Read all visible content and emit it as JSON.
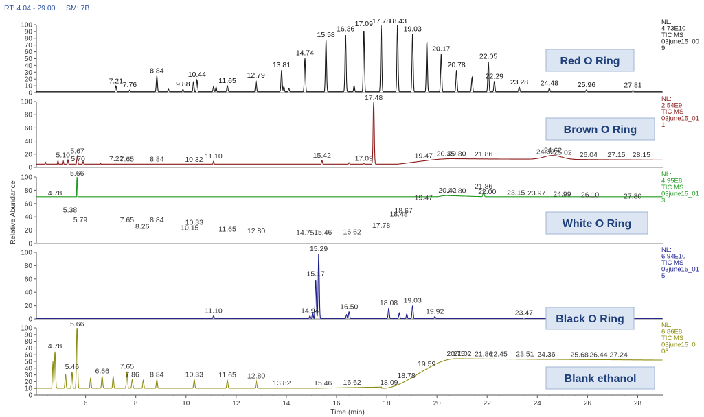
{
  "header": {
    "rt_label": "RT: 4.04 - 29.00",
    "sm_label": "SM: 7B"
  },
  "chart_data": {
    "type": "line",
    "xlabel": "Time (min)",
    "ylabel": "Relative Abundance",
    "xlim": [
      4.04,
      29.0
    ],
    "ylim": [
      0,
      100
    ],
    "x_ticks": [
      6,
      8,
      10,
      12,
      14,
      16,
      18,
      20,
      22,
      24,
      26,
      28
    ],
    "y_ticks": [
      0,
      20,
      40,
      60,
      80,
      100
    ],
    "panels": [
      {
        "name": "Red O Ring",
        "color": "#1a1a1a",
        "label_color": "#111111",
        "nl": [
          "NL:",
          "4.73E10",
          "TIC MS",
          "03june15_00",
          "9"
        ],
        "y_ticks": [
          0,
          10,
          20,
          30,
          40,
          50,
          60,
          70,
          80,
          90,
          100
        ],
        "baseline": 1,
        "hump": null,
        "peaks": [
          [
            7.21,
            9,
            "7.21"
          ],
          [
            7.76,
            3,
            "7.76"
          ],
          [
            8.84,
            24,
            "8.84"
          ],
          [
            9.88,
            4,
            "9.88"
          ],
          [
            10.44,
            18,
            "10.44"
          ],
          [
            11.65,
            9,
            "11.65"
          ],
          [
            12.79,
            17,
            "12.79"
          ],
          [
            13.81,
            32,
            "13.81"
          ],
          [
            14.74,
            50,
            "14.74"
          ],
          [
            15.58,
            77,
            "15.58"
          ],
          [
            16.36,
            85,
            "16.36"
          ],
          [
            17.09,
            93,
            "17.09"
          ],
          [
            17.78,
            100,
            "17.78"
          ],
          [
            18.43,
            100,
            "18.43"
          ],
          [
            19.03,
            85,
            "19.03"
          ],
          [
            19.6,
            75,
            ""
          ],
          [
            20.17,
            56,
            "20.17"
          ],
          [
            20.78,
            32,
            "20.78"
          ],
          [
            21.4,
            22,
            ""
          ],
          [
            22.05,
            45,
            "22.05"
          ],
          [
            22.29,
            16,
            "22.29"
          ],
          [
            23.28,
            7,
            "23.28"
          ],
          [
            24.48,
            6,
            "24.48"
          ],
          [
            25.96,
            3,
            "25.96"
          ],
          [
            27.81,
            2,
            "27.81"
          ]
        ],
        "minor_peaks": [
          [
            9.3,
            4
          ],
          [
            10.3,
            15
          ],
          [
            11.1,
            8
          ],
          [
            11.2,
            7
          ],
          [
            13.9,
            8
          ],
          [
            14.1,
            5
          ],
          [
            16.7,
            9
          ]
        ]
      },
      {
        "name": "Brown O Ring",
        "color": "#8b1a1a",
        "label_color": "#333333",
        "nl": [
          "NL:",
          "2.54E9",
          "TIC MS",
          "03june15_01",
          "1"
        ],
        "y_ticks": [
          0,
          20,
          40,
          60,
          80,
          100
        ],
        "baseline": 3,
        "hump": {
          "start": 17.6,
          "end": 20.6,
          "level": 13,
          "end_level": 11,
          "bump_x": 24.62,
          "bump_h": 6
        },
        "peaks": [
          [
            5.1,
            8,
            "5.10"
          ],
          [
            5.67,
            14,
            "5.67"
          ],
          [
            5.7,
            2,
            "5.70"
          ],
          [
            7.22,
            2,
            "7.22"
          ],
          [
            7.65,
            2,
            "7.65"
          ],
          [
            8.84,
            2,
            "8.84"
          ],
          [
            10.32,
            1,
            "10.32"
          ],
          [
            11.1,
            6,
            "11.10"
          ],
          [
            15.42,
            7,
            "15.42"
          ],
          [
            17.09,
            1,
            "17.09"
          ],
          [
            17.48,
            100,
            "17.48"
          ],
          [
            19.47,
            0,
            "19.47"
          ],
          [
            20.35,
            0,
            "20.35"
          ],
          [
            20.8,
            0,
            "20.80"
          ],
          [
            21.86,
            0,
            "21.86"
          ],
          [
            24.32,
            0,
            "24.32"
          ],
          [
            24.62,
            0,
            "24.62"
          ],
          [
            25.02,
            0,
            "25.02"
          ],
          [
            26.04,
            0,
            "26.04"
          ],
          [
            27.15,
            0,
            "27.15"
          ],
          [
            28.15,
            0,
            "28.15"
          ]
        ],
        "minor_peaks": [
          [
            4.4,
            5
          ],
          [
            4.9,
            7
          ],
          [
            5.3,
            8
          ],
          [
            5.9,
            6
          ],
          [
            6.6,
            3
          ],
          [
            16.5,
            3
          ]
        ]
      },
      {
        "name": "White O Ring",
        "color": "#1f9a1f",
        "label_color": "#333333",
        "nl": [
          "NL:",
          "4.95E8",
          "TIC MS",
          "03june15_01",
          "3"
        ],
        "y_ticks": [
          0,
          20,
          40,
          60,
          80,
          100
        ],
        "baseline": 8,
        "hump": {
          "start": 16.8,
          "end": 20.4,
          "level": 72,
          "end_level": 62,
          "bump_x": null,
          "bump_h": 0
        },
        "peaks": [
          [
            4.78,
            60,
            "4.78"
          ],
          [
            5.38,
            35,
            "5.38"
          ],
          [
            5.66,
            100,
            "5.66"
          ],
          [
            5.79,
            20,
            "5.79"
          ],
          [
            7.65,
            20,
            "7.65"
          ],
          [
            8.26,
            10,
            "8.26"
          ],
          [
            8.84,
            20,
            "8.84"
          ],
          [
            10.15,
            8,
            "10.15"
          ],
          [
            10.33,
            16,
            "10.33"
          ],
          [
            11.65,
            6,
            "11.65"
          ],
          [
            12.8,
            3,
            "12.80"
          ],
          [
            14.75,
            0,
            "14.75"
          ],
          [
            15.46,
            0,
            "15.46"
          ],
          [
            16.62,
            0,
            "16.62"
          ],
          [
            17.78,
            0,
            "17.78"
          ],
          [
            18.48,
            0,
            "18.48"
          ],
          [
            18.67,
            0,
            "18.67"
          ],
          [
            19.47,
            0,
            "19.47"
          ],
          [
            20.42,
            0,
            "20.42"
          ],
          [
            20.8,
            0,
            "20.80"
          ],
          [
            21.86,
            8,
            "21.86"
          ],
          [
            22.0,
            0,
            "22.00"
          ],
          [
            23.15,
            0,
            "23.15"
          ],
          [
            23.97,
            0,
            "23.97"
          ],
          [
            24.99,
            0,
            "24.99"
          ],
          [
            26.1,
            0,
            "26.10"
          ],
          [
            27.8,
            0,
            "27.80"
          ]
        ],
        "minor_peaks": [
          [
            4.7,
            40
          ],
          [
            5.1,
            30
          ],
          [
            6.5,
            8
          ],
          [
            6.8,
            10
          ],
          [
            7.1,
            14
          ],
          [
            9.0,
            7
          ]
        ]
      },
      {
        "name": "Black O Ring",
        "color": "#1c1c8c",
        "label_color": "#333333",
        "nl": [
          "NL:",
          "6.94E10",
          "TIC MS",
          "03june15_01",
          "5"
        ],
        "y_ticks": [
          0,
          20,
          40,
          60,
          80,
          100
        ],
        "baseline": 0.5,
        "hump": null,
        "peaks": [
          [
            11.1,
            4,
            "11.10"
          ],
          [
            14.94,
            4,
            "14.94"
          ],
          [
            15.17,
            60,
            "15.17"
          ],
          [
            15.29,
            100,
            "15.29"
          ],
          [
            16.5,
            10,
            "16.50"
          ],
          [
            18.08,
            16,
            "18.08"
          ],
          [
            19.03,
            20,
            "19.03"
          ],
          [
            19.92,
            3,
            "19.92"
          ],
          [
            23.47,
            1,
            "23.47"
          ]
        ],
        "minor_peaks": [
          [
            15.05,
            10
          ],
          [
            16.4,
            6
          ],
          [
            18.5,
            8
          ],
          [
            18.8,
            7
          ]
        ]
      },
      {
        "name": "Blank ethanol",
        "color": "#8c8c10",
        "label_color": "#333333",
        "nl": [
          "NL:",
          "6.86E8",
          "TIC MS",
          "03june15_0",
          "08"
        ],
        "y_ticks": [
          0,
          10,
          20,
          30,
          40,
          50,
          60,
          70,
          80,
          90,
          100
        ],
        "baseline": 10,
        "hump": {
          "start": 17.8,
          "end": 20.75,
          "level": 54,
          "end_level": 52,
          "bump_x": null,
          "bump_h": 0
        },
        "peaks": [
          [
            4.78,
            55,
            "4.78"
          ],
          [
            5.46,
            25,
            "5.46"
          ],
          [
            5.66,
            100,
            "5.66"
          ],
          [
            6.66,
            18,
            "6.66"
          ],
          [
            7.65,
            25,
            "7.65"
          ],
          [
            7.86,
            13,
            "7.86"
          ],
          [
            8.84,
            13,
            "8.84"
          ],
          [
            10.33,
            13,
            "10.33"
          ],
          [
            11.65,
            12,
            "11.65"
          ],
          [
            12.8,
            11,
            "12.80"
          ],
          [
            13.82,
            0,
            "13.82"
          ],
          [
            15.46,
            0,
            "15.46"
          ],
          [
            16.62,
            0,
            "16.62"
          ],
          [
            18.09,
            0,
            "18.09"
          ],
          [
            18.78,
            0,
            "18.78"
          ],
          [
            19.59,
            0,
            "19.59"
          ],
          [
            20.75,
            0,
            "20.75"
          ],
          [
            21.02,
            0,
            "21.02"
          ],
          [
            21.86,
            0,
            "21.86"
          ],
          [
            22.45,
            0,
            "22.45"
          ],
          [
            23.51,
            0,
            "23.51"
          ],
          [
            24.36,
            0,
            "24.36"
          ],
          [
            25.68,
            0,
            "25.68"
          ],
          [
            26.44,
            0,
            "26.44"
          ],
          [
            27.24,
            0,
            "27.24"
          ]
        ],
        "minor_peaks": [
          [
            4.7,
            40
          ],
          [
            5.2,
            22
          ],
          [
            6.2,
            16
          ],
          [
            7.1,
            18
          ],
          [
            8.3,
            13
          ]
        ]
      }
    ]
  }
}
